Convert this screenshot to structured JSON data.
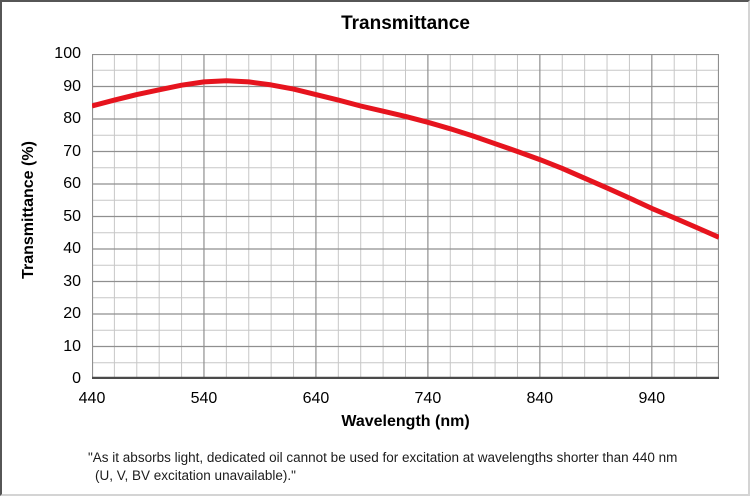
{
  "chart_data": {
    "type": "line",
    "title": "Transmittance",
    "xlabel": "Wavelength (nm)",
    "ylabel": "Transmittance (%)",
    "xlim": [
      440,
      1000
    ],
    "ylim": [
      0,
      100
    ],
    "x_major_ticks": [
      440,
      540,
      640,
      740,
      840,
      940
    ],
    "x_minor_step": 20,
    "y_major_ticks": [
      0,
      10,
      20,
      30,
      40,
      50,
      60,
      70,
      80,
      90,
      100
    ],
    "y_minor_step": 5,
    "grid": "major-and-minor",
    "legend_position": "none",
    "series": [
      {
        "name": "Transmittance",
        "color": "#e6141e",
        "x": [
          440,
          460,
          480,
          500,
          520,
          540,
          560,
          580,
          600,
          620,
          640,
          660,
          680,
          700,
          720,
          740,
          760,
          780,
          800,
          820,
          840,
          860,
          880,
          900,
          920,
          940,
          960,
          980,
          1000
        ],
        "values": [
          84.0,
          85.8,
          87.5,
          89.0,
          90.4,
          91.4,
          91.8,
          91.4,
          90.5,
          89.2,
          87.5,
          85.8,
          84.0,
          82.4,
          80.8,
          79.0,
          77.0,
          74.8,
          72.4,
          70.0,
          67.5,
          64.8,
          61.8,
          58.8,
          55.7,
          52.5,
          49.6,
          46.6,
          43.6
        ]
      }
    ]
  },
  "footnote": {
    "line1": "\"As it absorbs light, dedicated oil cannot be used for excitation at wavelengths shorter than 440 nm",
    "line2": "(U, V, BV excitation unavailable).\""
  },
  "colors": {
    "line_red": "#e6141e",
    "grid_major": "#8f8f8f",
    "grid_minor": "#c7c7c7",
    "plot_border": "#8f8f8f",
    "axis_bottom": "#4a4a4a",
    "text": "#000000"
  }
}
